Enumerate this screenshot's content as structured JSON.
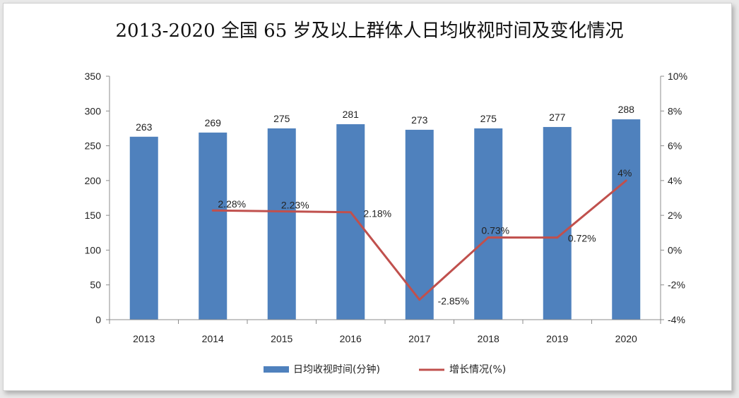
{
  "chart_data": {
    "type": "bar",
    "title": "2013-2020 全国 65 岁及以上群体人日均收视时间及变化情况",
    "categories": [
      "2013",
      "2014",
      "2015",
      "2016",
      "2017",
      "2018",
      "2019",
      "2020"
    ],
    "ylim": [
      0,
      350
    ],
    "y_ticks": [
      "0",
      "50",
      "100",
      "150",
      "200",
      "250",
      "300",
      "350"
    ],
    "y2lim": [
      -4,
      10
    ],
    "y2_ticks": [
      "-4%",
      "-2%",
      "0%",
      "2%",
      "4%",
      "6%",
      "8%",
      "10%"
    ],
    "series": [
      {
        "name": "日均收视时间(分钟)",
        "type": "bar",
        "axis": "left",
        "color": "#4f81bd",
        "values": [
          263,
          269,
          275,
          281,
          273,
          275,
          277,
          288
        ],
        "labels": [
          "263",
          "269",
          "275",
          "281",
          "273",
          "275",
          "277",
          "288"
        ]
      },
      {
        "name": "增长情况(%)",
        "type": "line",
        "axis": "right",
        "color": "#c0504d",
        "values": [
          null,
          2.28,
          2.23,
          2.18,
          -2.85,
          0.73,
          0.72,
          4
        ],
        "labels": [
          "",
          "2.28%",
          "2.23%",
          "2.18%",
          "-2.85%",
          "0.73%",
          "0.72%",
          "4%"
        ]
      }
    ],
    "legend": "bottom",
    "grid": false
  }
}
